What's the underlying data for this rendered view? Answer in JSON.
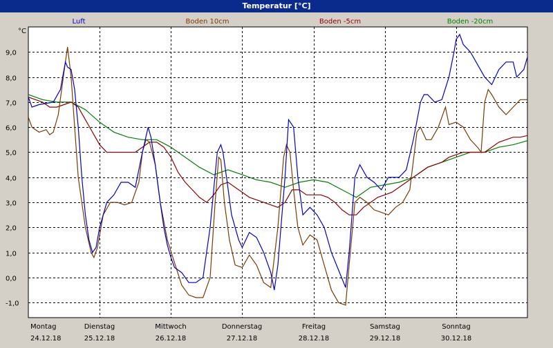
{
  "window": {
    "title": "Temperatur [°C]"
  },
  "chart_data": {
    "type": "line",
    "title": "Temperatur [°C]",
    "ylabel": "°C",
    "xlabel": "",
    "ylim": [
      -1.6,
      10.0
    ],
    "xlim": [
      0,
      7
    ],
    "grid": true,
    "legend_position": "top",
    "y_ticks": [
      {
        "value": 9,
        "label": "9,0"
      },
      {
        "value": 8,
        "label": "8,0"
      },
      {
        "value": 7,
        "label": "7,0"
      },
      {
        "value": 6,
        "label": "6,0"
      },
      {
        "value": 5,
        "label": "5,0"
      },
      {
        "value": 4,
        "label": "4,0"
      },
      {
        "value": 3,
        "label": "3,0"
      },
      {
        "value": 2,
        "label": "2,0"
      },
      {
        "value": 1,
        "label": "1,0"
      },
      {
        "value": 0,
        "label": "0,0"
      },
      {
        "value": -1,
        "label": "-1,0"
      }
    ],
    "x_ticks": [
      {
        "day": "Montag",
        "date": "24.12.18"
      },
      {
        "day": "Dienstag",
        "date": "25.12.18"
      },
      {
        "day": "Mittwoch",
        "date": "26.12.18"
      },
      {
        "day": "Donnerstag",
        "date": "27.12.18"
      },
      {
        "day": "Freitag",
        "date": "28.12.18"
      },
      {
        "day": "Samstag",
        "date": "29.12.18"
      },
      {
        "day": "Sonntag",
        "date": "30.12.18"
      }
    ],
    "series": [
      {
        "name": "Luft",
        "color": "#0000cc",
        "points": [
          [
            0,
            7.2
          ],
          [
            0.05,
            6.8
          ],
          [
            0.15,
            6.9
          ],
          [
            0.35,
            7.0
          ],
          [
            0.45,
            7.5
          ],
          [
            0.52,
            8.6
          ],
          [
            0.55,
            8.4
          ],
          [
            0.6,
            8.3
          ],
          [
            0.65,
            7.5
          ],
          [
            0.7,
            6.0
          ],
          [
            0.75,
            4.0
          ],
          [
            0.8,
            2.5
          ],
          [
            0.85,
            1.5
          ],
          [
            0.9,
            1.0
          ],
          [
            0.95,
            1.2
          ],
          [
            1.0,
            2.0
          ],
          [
            1.1,
            3.0
          ],
          [
            1.2,
            3.3
          ],
          [
            1.3,
            3.8
          ],
          [
            1.4,
            3.8
          ],
          [
            1.5,
            3.6
          ],
          [
            1.6,
            5.0
          ],
          [
            1.68,
            6.0
          ],
          [
            1.72,
            5.6
          ],
          [
            1.78,
            4.5
          ],
          [
            1.85,
            3.0
          ],
          [
            1.9,
            2.0
          ],
          [
            1.95,
            1.3
          ],
          [
            2.0,
            0.8
          ],
          [
            2.05,
            0.4
          ],
          [
            2.15,
            0.2
          ],
          [
            2.25,
            -0.2
          ],
          [
            2.35,
            -0.2
          ],
          [
            2.45,
            0.0
          ],
          [
            2.55,
            2.0
          ],
          [
            2.65,
            5.0
          ],
          [
            2.7,
            5.3
          ],
          [
            2.73,
            5.0
          ],
          [
            2.78,
            4.0
          ],
          [
            2.85,
            2.5
          ],
          [
            2.95,
            1.5
          ],
          [
            3.0,
            1.2
          ],
          [
            3.05,
            1.5
          ],
          [
            3.1,
            1.8
          ],
          [
            3.2,
            1.6
          ],
          [
            3.3,
            1.0
          ],
          [
            3.4,
            0.2
          ],
          [
            3.45,
            -0.5
          ],
          [
            3.5,
            0.5
          ],
          [
            3.6,
            4.0
          ],
          [
            3.65,
            6.3
          ],
          [
            3.72,
            6.0
          ],
          [
            3.78,
            4.0
          ],
          [
            3.85,
            2.5
          ],
          [
            3.95,
            2.8
          ],
          [
            4.05,
            2.5
          ],
          [
            4.15,
            2.0
          ],
          [
            4.25,
            1.0
          ],
          [
            4.35,
            0.3
          ],
          [
            4.45,
            -0.4
          ],
          [
            4.5,
            1.0
          ],
          [
            4.58,
            4.0
          ],
          [
            4.65,
            4.5
          ],
          [
            4.75,
            4.0
          ],
          [
            4.85,
            3.8
          ],
          [
            4.95,
            3.5
          ],
          [
            5.05,
            4.0
          ],
          [
            5.2,
            4.0
          ],
          [
            5.3,
            4.3
          ],
          [
            5.4,
            5.5
          ],
          [
            5.5,
            7.0
          ],
          [
            5.55,
            7.3
          ],
          [
            5.6,
            7.3
          ],
          [
            5.7,
            7.0
          ],
          [
            5.8,
            7.1
          ],
          [
            5.9,
            8.0
          ],
          [
            5.97,
            9.0
          ],
          [
            6.0,
            9.5
          ],
          [
            6.05,
            9.7
          ],
          [
            6.1,
            9.3
          ],
          [
            6.2,
            9.0
          ],
          [
            6.3,
            8.5
          ],
          [
            6.4,
            8.0
          ],
          [
            6.5,
            7.7
          ],
          [
            6.6,
            8.3
          ],
          [
            6.7,
            8.6
          ],
          [
            6.8,
            8.6
          ],
          [
            6.85,
            8.0
          ],
          [
            6.95,
            8.3
          ],
          [
            7.0,
            8.8
          ],
          [
            7.05,
            9.0
          ]
        ]
      },
      {
        "name": "Boden 10cm",
        "color": "#7a3a00",
        "points": [
          [
            0,
            6.4
          ],
          [
            0.05,
            6.0
          ],
          [
            0.15,
            5.8
          ],
          [
            0.25,
            5.9
          ],
          [
            0.3,
            5.7
          ],
          [
            0.35,
            5.8
          ],
          [
            0.42,
            6.5
          ],
          [
            0.5,
            8.2
          ],
          [
            0.55,
            9.2
          ],
          [
            0.6,
            8.0
          ],
          [
            0.65,
            6.0
          ],
          [
            0.7,
            4.0
          ],
          [
            0.8,
            2.0
          ],
          [
            0.88,
            1.0
          ],
          [
            0.92,
            0.8
          ],
          [
            0.97,
            1.2
          ],
          [
            1.05,
            2.5
          ],
          [
            1.15,
            3.0
          ],
          [
            1.25,
            3.0
          ],
          [
            1.35,
            2.9
          ],
          [
            1.45,
            3.0
          ],
          [
            1.55,
            3.8
          ],
          [
            1.6,
            5.0
          ],
          [
            1.65,
            5.5
          ],
          [
            1.7,
            5.4
          ],
          [
            1.78,
            4.5
          ],
          [
            1.85,
            3.0
          ],
          [
            1.95,
            1.5
          ],
          [
            2.05,
            0.6
          ],
          [
            2.15,
            -0.3
          ],
          [
            2.25,
            -0.7
          ],
          [
            2.35,
            -0.8
          ],
          [
            2.45,
            -0.8
          ],
          [
            2.55,
            0.0
          ],
          [
            2.62,
            3.0
          ],
          [
            2.67,
            4.8
          ],
          [
            2.7,
            4.7
          ],
          [
            2.75,
            3.0
          ],
          [
            2.82,
            1.5
          ],
          [
            2.9,
            0.5
          ],
          [
            3.0,
            0.4
          ],
          [
            3.1,
            0.9
          ],
          [
            3.2,
            0.5
          ],
          [
            3.3,
            -0.2
          ],
          [
            3.4,
            -0.4
          ],
          [
            3.5,
            2.0
          ],
          [
            3.58,
            4.8
          ],
          [
            3.62,
            5.3
          ],
          [
            3.67,
            5.0
          ],
          [
            3.72,
            3.5
          ],
          [
            3.78,
            2.0
          ],
          [
            3.85,
            1.3
          ],
          [
            3.95,
            1.7
          ],
          [
            4.05,
            1.5
          ],
          [
            4.15,
            0.5
          ],
          [
            4.25,
            -0.5
          ],
          [
            4.35,
            -1.0
          ],
          [
            4.45,
            -1.1
          ],
          [
            4.5,
            0.5
          ],
          [
            4.58,
            3.0
          ],
          [
            4.65,
            3.2
          ],
          [
            4.75,
            3.0
          ],
          [
            4.85,
            2.7
          ],
          [
            4.95,
            2.6
          ],
          [
            5.05,
            2.5
          ],
          [
            5.15,
            2.8
          ],
          [
            5.25,
            3.0
          ],
          [
            5.35,
            3.5
          ],
          [
            5.45,
            5.8
          ],
          [
            5.5,
            6.0
          ],
          [
            5.58,
            5.5
          ],
          [
            5.65,
            5.5
          ],
          [
            5.75,
            6.0
          ],
          [
            5.85,
            6.8
          ],
          [
            5.9,
            6.1
          ],
          [
            6.0,
            6.2
          ],
          [
            6.1,
            6.0
          ],
          [
            6.2,
            5.5
          ],
          [
            6.3,
            5.2
          ],
          [
            6.35,
            5.0
          ],
          [
            6.4,
            7.0
          ],
          [
            6.45,
            7.5
          ],
          [
            6.5,
            7.3
          ],
          [
            6.6,
            6.8
          ],
          [
            6.7,
            6.5
          ],
          [
            6.8,
            6.8
          ],
          [
            6.9,
            7.1
          ],
          [
            7.05,
            7.1
          ]
        ]
      },
      {
        "name": "Boden -5cm",
        "color": "#8b0000",
        "points": [
          [
            0,
            7.2
          ],
          [
            0.1,
            7.1
          ],
          [
            0.2,
            7.0
          ],
          [
            0.3,
            6.8
          ],
          [
            0.4,
            6.8
          ],
          [
            0.5,
            6.9
          ],
          [
            0.6,
            7.0
          ],
          [
            0.7,
            6.8
          ],
          [
            0.8,
            6.3
          ],
          [
            0.9,
            5.8
          ],
          [
            1.0,
            5.3
          ],
          [
            1.1,
            5.0
          ],
          [
            1.2,
            5.0
          ],
          [
            1.3,
            5.0
          ],
          [
            1.4,
            5.0
          ],
          [
            1.5,
            5.0
          ],
          [
            1.6,
            5.2
          ],
          [
            1.7,
            5.4
          ],
          [
            1.8,
            5.4
          ],
          [
            1.9,
            5.2
          ],
          [
            2.0,
            4.8
          ],
          [
            2.1,
            4.2
          ],
          [
            2.2,
            3.8
          ],
          [
            2.3,
            3.5
          ],
          [
            2.4,
            3.2
          ],
          [
            2.5,
            3.0
          ],
          [
            2.6,
            3.3
          ],
          [
            2.7,
            3.7
          ],
          [
            2.8,
            3.8
          ],
          [
            2.9,
            3.6
          ],
          [
            3.0,
            3.4
          ],
          [
            3.1,
            3.2
          ],
          [
            3.2,
            3.1
          ],
          [
            3.3,
            3.0
          ],
          [
            3.4,
            2.9
          ],
          [
            3.5,
            2.8
          ],
          [
            3.6,
            3.0
          ],
          [
            3.7,
            3.5
          ],
          [
            3.8,
            3.5
          ],
          [
            3.9,
            3.3
          ],
          [
            4.0,
            3.3
          ],
          [
            4.1,
            3.3
          ],
          [
            4.2,
            3.2
          ],
          [
            4.3,
            3.0
          ],
          [
            4.4,
            2.7
          ],
          [
            4.5,
            2.5
          ],
          [
            4.6,
            2.5
          ],
          [
            4.7,
            2.8
          ],
          [
            4.8,
            3.0
          ],
          [
            4.9,
            3.2
          ],
          [
            5.0,
            3.3
          ],
          [
            5.1,
            3.4
          ],
          [
            5.2,
            3.6
          ],
          [
            5.3,
            3.8
          ],
          [
            5.4,
            4.0
          ],
          [
            5.5,
            4.2
          ],
          [
            5.6,
            4.4
          ],
          [
            5.7,
            4.5
          ],
          [
            5.8,
            4.6
          ],
          [
            5.9,
            4.8
          ],
          [
            6.0,
            4.9
          ],
          [
            6.1,
            5.0
          ],
          [
            6.2,
            5.0
          ],
          [
            6.3,
            5.0
          ],
          [
            6.4,
            5.0
          ],
          [
            6.5,
            5.2
          ],
          [
            6.6,
            5.4
          ],
          [
            6.7,
            5.5
          ],
          [
            6.8,
            5.6
          ],
          [
            6.9,
            5.6
          ],
          [
            7.05,
            5.7
          ]
        ]
      },
      {
        "name": "Boden -20cm",
        "color": "#008000",
        "points": [
          [
            0,
            7.3
          ],
          [
            0.2,
            7.1
          ],
          [
            0.4,
            7.0
          ],
          [
            0.6,
            7.0
          ],
          [
            0.8,
            6.7
          ],
          [
            1.0,
            6.2
          ],
          [
            1.2,
            5.8
          ],
          [
            1.4,
            5.6
          ],
          [
            1.6,
            5.5
          ],
          [
            1.8,
            5.5
          ],
          [
            2.0,
            5.2
          ],
          [
            2.2,
            4.8
          ],
          [
            2.4,
            4.4
          ],
          [
            2.6,
            4.1
          ],
          [
            2.8,
            4.3
          ],
          [
            3.0,
            4.1
          ],
          [
            3.2,
            3.9
          ],
          [
            3.4,
            3.8
          ],
          [
            3.6,
            3.6
          ],
          [
            3.8,
            3.8
          ],
          [
            4.0,
            3.9
          ],
          [
            4.2,
            3.8
          ],
          [
            4.4,
            3.5
          ],
          [
            4.6,
            3.2
          ],
          [
            4.8,
            3.6
          ],
          [
            5.0,
            3.7
          ],
          [
            5.2,
            3.8
          ],
          [
            5.4,
            4.0
          ],
          [
            5.6,
            4.4
          ],
          [
            5.8,
            4.6
          ],
          [
            6.0,
            4.8
          ],
          [
            6.2,
            5.0
          ],
          [
            6.4,
            5.0
          ],
          [
            6.6,
            5.2
          ],
          [
            6.8,
            5.3
          ],
          [
            7.05,
            5.5
          ]
        ]
      }
    ]
  }
}
